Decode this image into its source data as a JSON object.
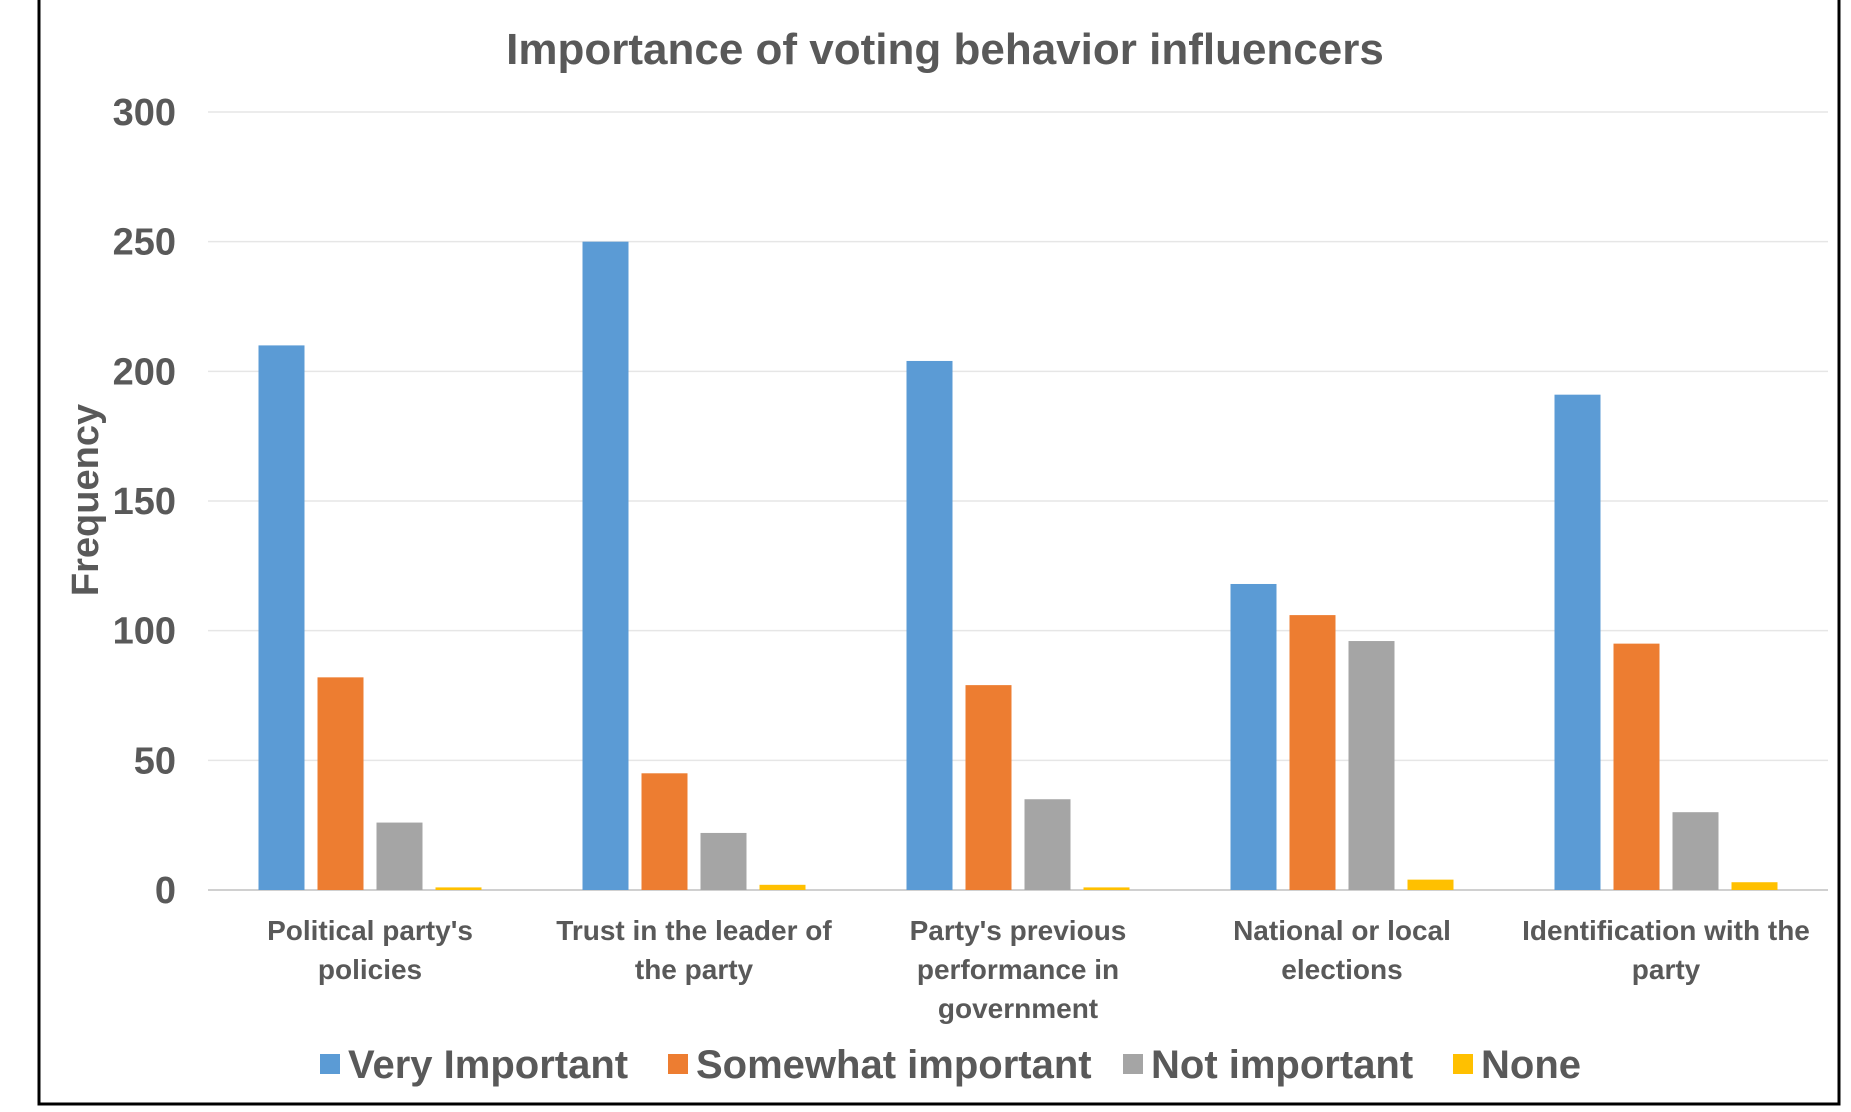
{
  "chart_data": {
    "type": "bar",
    "title": "Importance of voting behavior influencers",
    "xlabel": "",
    "ylabel": "Frequency",
    "ylim": [
      0,
      300
    ],
    "yticks": [
      0,
      50,
      100,
      150,
      200,
      250,
      300
    ],
    "grid": true,
    "legend_position": "bottom",
    "categories": [
      [
        "Political party's",
        "policies"
      ],
      [
        "Trust in the leader of",
        "the party"
      ],
      [
        "Party's previous",
        "performance in",
        "government"
      ],
      [
        "National or local",
        "elections"
      ],
      [
        "Identification with the",
        "party"
      ]
    ],
    "series": [
      {
        "name": "Very Important",
        "color": "#5B9BD5",
        "values": [
          210,
          250,
          204,
          118,
          191
        ]
      },
      {
        "name": "Somewhat important",
        "color": "#ED7D31",
        "values": [
          82,
          45,
          79,
          106,
          95
        ]
      },
      {
        "name": "Not important",
        "color": "#A5A5A5",
        "values": [
          26,
          22,
          35,
          96,
          30
        ]
      },
      {
        "name": "None",
        "color": "#FFC000",
        "values": [
          1,
          2,
          1,
          4,
          3
        ]
      }
    ]
  }
}
